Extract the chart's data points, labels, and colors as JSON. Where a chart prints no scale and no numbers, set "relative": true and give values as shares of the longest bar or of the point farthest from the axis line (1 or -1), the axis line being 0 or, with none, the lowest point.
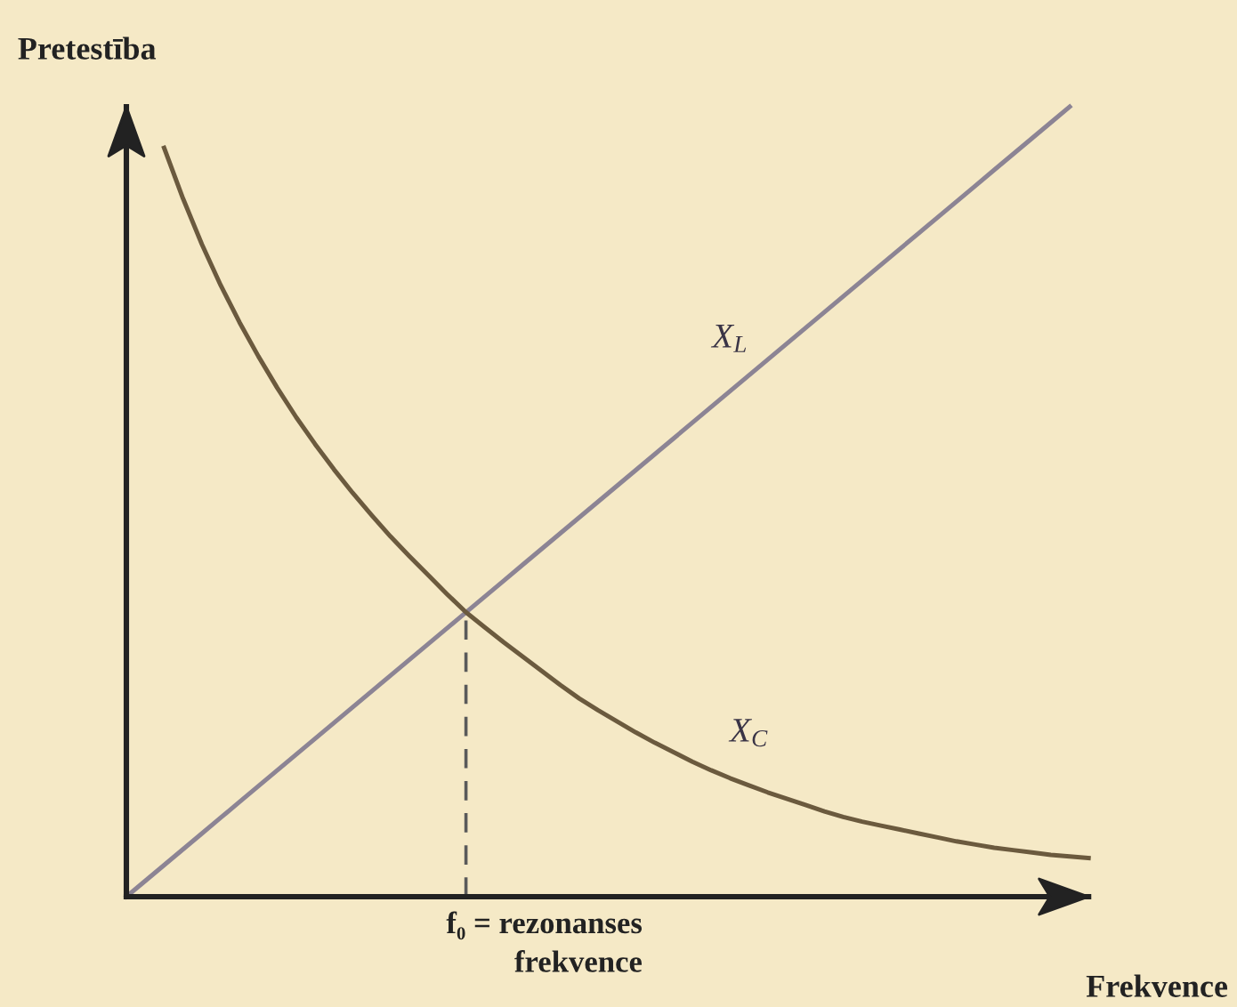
{
  "chart_data": {
    "type": "line",
    "relative": true,
    "tick_labels": false,
    "legend": false,
    "xlabel": "Frekvence",
    "ylabel": "Pretestība",
    "categories": [
      null,
      null,
      null,
      null,
      null,
      null,
      null,
      null,
      null,
      null,
      null,
      null,
      null,
      null,
      null,
      null,
      null,
      null,
      null,
      null,
      null,
      null,
      null,
      null,
      null,
      null,
      null,
      null,
      null,
      null,
      null,
      null,
      null,
      null,
      null,
      null,
      null,
      null,
      null,
      null,
      null,
      null,
      null,
      null,
      null,
      null,
      null,
      null,
      null,
      null,
      null,
      null
    ],
    "series": [
      {
        "name": "X$_{L}$",
        "color": "#8c8494",
        "values": [
          0,
          0.02,
          0.04,
          0.06,
          0.08,
          0.1,
          0.12,
          0.14,
          0.16,
          0.18,
          0.2,
          0.22,
          0.24,
          0.26,
          0.28,
          0.3,
          0.32,
          0.34,
          0.36,
          0.38,
          0.4,
          0.42,
          0.44,
          0.46,
          0.48,
          0.5,
          0.52,
          0.54,
          0.56,
          0.58,
          0.6,
          0.62,
          0.64,
          0.66,
          0.68,
          0.7,
          0.72,
          0.74,
          0.76,
          0.78,
          0.8,
          0.82,
          0.84,
          0.86,
          0.88,
          0.9,
          0.92,
          0.94,
          0.96,
          0.98,
          1.0,
          null
        ]
      },
      {
        "name": "X$_{C}$",
        "color": "#6b5a3e",
        "values": [
          null,
          null,
          0.948,
          0.884,
          0.826,
          0.774,
          0.727,
          0.684,
          0.644,
          0.607,
          0.573,
          0.541,
          0.511,
          0.483,
          0.456,
          0.431,
          0.407,
          0.383,
          0.36,
          0.341,
          0.322,
          0.304,
          0.286,
          0.268,
          0.251,
          0.236,
          0.222,
          0.208,
          0.195,
          0.183,
          0.171,
          0.16,
          0.15,
          0.141,
          0.132,
          0.124,
          0.116,
          0.108,
          0.101,
          0.095,
          0.09,
          0.085,
          0.08,
          0.075,
          0.07,
          0.066,
          0.062,
          0.059,
          0.056,
          0.053,
          0.051,
          0.049
        ]
      }
    ],
    "annotations": [
      "f₀ = rezonanses\nfrekvence"
    ]
  }
}
